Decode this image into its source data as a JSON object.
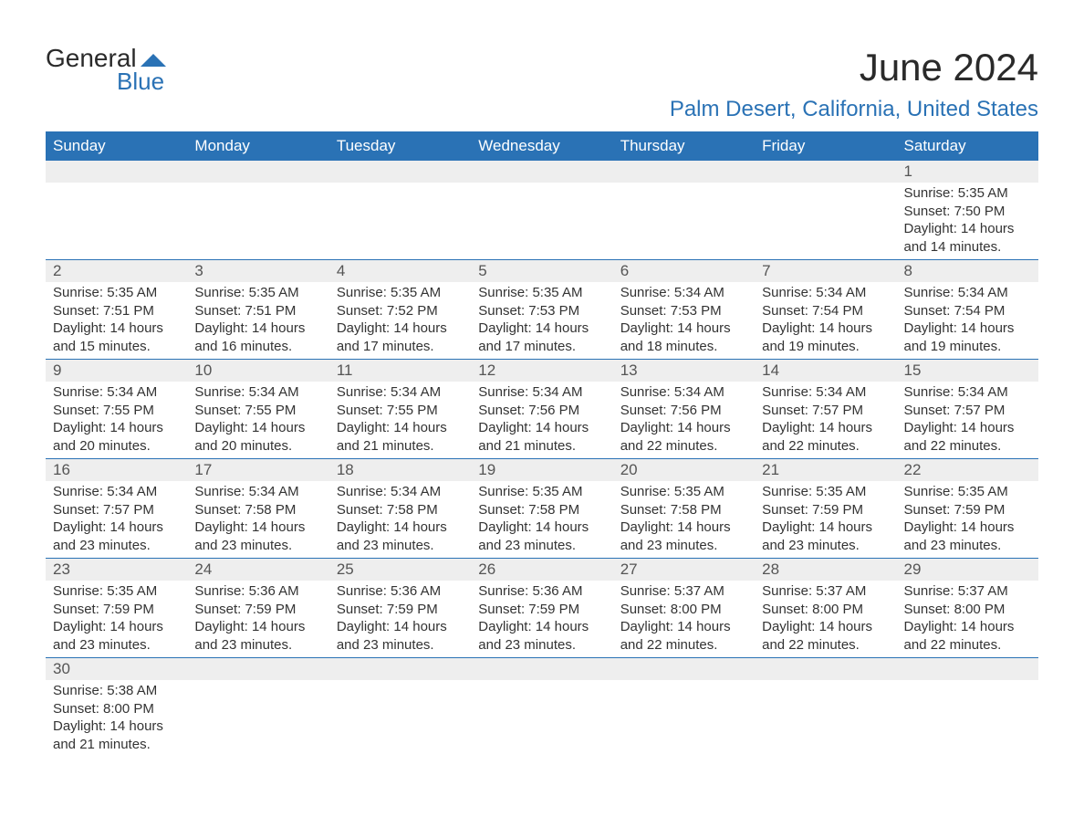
{
  "brand": {
    "line1": "General",
    "line2": "Blue"
  },
  "title": "June 2024",
  "location": "Palm Desert, California, United States",
  "colors": {
    "header_bg": "#2a72b5",
    "header_text": "#ffffff",
    "daynum_bg": "#eeeeee",
    "row_border": "#2a72b5",
    "brand_blue": "#2a72b5",
    "text": "#333333",
    "bg": "#ffffff"
  },
  "weekdays": [
    "Sunday",
    "Monday",
    "Tuesday",
    "Wednesday",
    "Thursday",
    "Friday",
    "Saturday"
  ],
  "weeks": [
    [
      {
        "blank": true
      },
      {
        "blank": true
      },
      {
        "blank": true
      },
      {
        "blank": true
      },
      {
        "blank": true
      },
      {
        "blank": true
      },
      {
        "day": "1",
        "sunrise": "Sunrise: 5:35 AM",
        "sunset": "Sunset: 7:50 PM",
        "daylight": "Daylight: 14 hours and 14 minutes."
      }
    ],
    [
      {
        "day": "2",
        "sunrise": "Sunrise: 5:35 AM",
        "sunset": "Sunset: 7:51 PM",
        "daylight": "Daylight: 14 hours and 15 minutes."
      },
      {
        "day": "3",
        "sunrise": "Sunrise: 5:35 AM",
        "sunset": "Sunset: 7:51 PM",
        "daylight": "Daylight: 14 hours and 16 minutes."
      },
      {
        "day": "4",
        "sunrise": "Sunrise: 5:35 AM",
        "sunset": "Sunset: 7:52 PM",
        "daylight": "Daylight: 14 hours and 17 minutes."
      },
      {
        "day": "5",
        "sunrise": "Sunrise: 5:35 AM",
        "sunset": "Sunset: 7:53 PM",
        "daylight": "Daylight: 14 hours and 17 minutes."
      },
      {
        "day": "6",
        "sunrise": "Sunrise: 5:34 AM",
        "sunset": "Sunset: 7:53 PM",
        "daylight": "Daylight: 14 hours and 18 minutes."
      },
      {
        "day": "7",
        "sunrise": "Sunrise: 5:34 AM",
        "sunset": "Sunset: 7:54 PM",
        "daylight": "Daylight: 14 hours and 19 minutes."
      },
      {
        "day": "8",
        "sunrise": "Sunrise: 5:34 AM",
        "sunset": "Sunset: 7:54 PM",
        "daylight": "Daylight: 14 hours and 19 minutes."
      }
    ],
    [
      {
        "day": "9",
        "sunrise": "Sunrise: 5:34 AM",
        "sunset": "Sunset: 7:55 PM",
        "daylight": "Daylight: 14 hours and 20 minutes."
      },
      {
        "day": "10",
        "sunrise": "Sunrise: 5:34 AM",
        "sunset": "Sunset: 7:55 PM",
        "daylight": "Daylight: 14 hours and 20 minutes."
      },
      {
        "day": "11",
        "sunrise": "Sunrise: 5:34 AM",
        "sunset": "Sunset: 7:55 PM",
        "daylight": "Daylight: 14 hours and 21 minutes."
      },
      {
        "day": "12",
        "sunrise": "Sunrise: 5:34 AM",
        "sunset": "Sunset: 7:56 PM",
        "daylight": "Daylight: 14 hours and 21 minutes."
      },
      {
        "day": "13",
        "sunrise": "Sunrise: 5:34 AM",
        "sunset": "Sunset: 7:56 PM",
        "daylight": "Daylight: 14 hours and 22 minutes."
      },
      {
        "day": "14",
        "sunrise": "Sunrise: 5:34 AM",
        "sunset": "Sunset: 7:57 PM",
        "daylight": "Daylight: 14 hours and 22 minutes."
      },
      {
        "day": "15",
        "sunrise": "Sunrise: 5:34 AM",
        "sunset": "Sunset: 7:57 PM",
        "daylight": "Daylight: 14 hours and 22 minutes."
      }
    ],
    [
      {
        "day": "16",
        "sunrise": "Sunrise: 5:34 AM",
        "sunset": "Sunset: 7:57 PM",
        "daylight": "Daylight: 14 hours and 23 minutes."
      },
      {
        "day": "17",
        "sunrise": "Sunrise: 5:34 AM",
        "sunset": "Sunset: 7:58 PM",
        "daylight": "Daylight: 14 hours and 23 minutes."
      },
      {
        "day": "18",
        "sunrise": "Sunrise: 5:34 AM",
        "sunset": "Sunset: 7:58 PM",
        "daylight": "Daylight: 14 hours and 23 minutes."
      },
      {
        "day": "19",
        "sunrise": "Sunrise: 5:35 AM",
        "sunset": "Sunset: 7:58 PM",
        "daylight": "Daylight: 14 hours and 23 minutes."
      },
      {
        "day": "20",
        "sunrise": "Sunrise: 5:35 AM",
        "sunset": "Sunset: 7:58 PM",
        "daylight": "Daylight: 14 hours and 23 minutes."
      },
      {
        "day": "21",
        "sunrise": "Sunrise: 5:35 AM",
        "sunset": "Sunset: 7:59 PM",
        "daylight": "Daylight: 14 hours and 23 minutes."
      },
      {
        "day": "22",
        "sunrise": "Sunrise: 5:35 AM",
        "sunset": "Sunset: 7:59 PM",
        "daylight": "Daylight: 14 hours and 23 minutes."
      }
    ],
    [
      {
        "day": "23",
        "sunrise": "Sunrise: 5:35 AM",
        "sunset": "Sunset: 7:59 PM",
        "daylight": "Daylight: 14 hours and 23 minutes."
      },
      {
        "day": "24",
        "sunrise": "Sunrise: 5:36 AM",
        "sunset": "Sunset: 7:59 PM",
        "daylight": "Daylight: 14 hours and 23 minutes."
      },
      {
        "day": "25",
        "sunrise": "Sunrise: 5:36 AM",
        "sunset": "Sunset: 7:59 PM",
        "daylight": "Daylight: 14 hours and 23 minutes."
      },
      {
        "day": "26",
        "sunrise": "Sunrise: 5:36 AM",
        "sunset": "Sunset: 7:59 PM",
        "daylight": "Daylight: 14 hours and 23 minutes."
      },
      {
        "day": "27",
        "sunrise": "Sunrise: 5:37 AM",
        "sunset": "Sunset: 8:00 PM",
        "daylight": "Daylight: 14 hours and 22 minutes."
      },
      {
        "day": "28",
        "sunrise": "Sunrise: 5:37 AM",
        "sunset": "Sunset: 8:00 PM",
        "daylight": "Daylight: 14 hours and 22 minutes."
      },
      {
        "day": "29",
        "sunrise": "Sunrise: 5:37 AM",
        "sunset": "Sunset: 8:00 PM",
        "daylight": "Daylight: 14 hours and 22 minutes."
      }
    ],
    [
      {
        "day": "30",
        "sunrise": "Sunrise: 5:38 AM",
        "sunset": "Sunset: 8:00 PM",
        "daylight": "Daylight: 14 hours and 21 minutes."
      },
      {
        "blank": true
      },
      {
        "blank": true
      },
      {
        "blank": true
      },
      {
        "blank": true
      },
      {
        "blank": true
      },
      {
        "blank": true
      }
    ]
  ]
}
